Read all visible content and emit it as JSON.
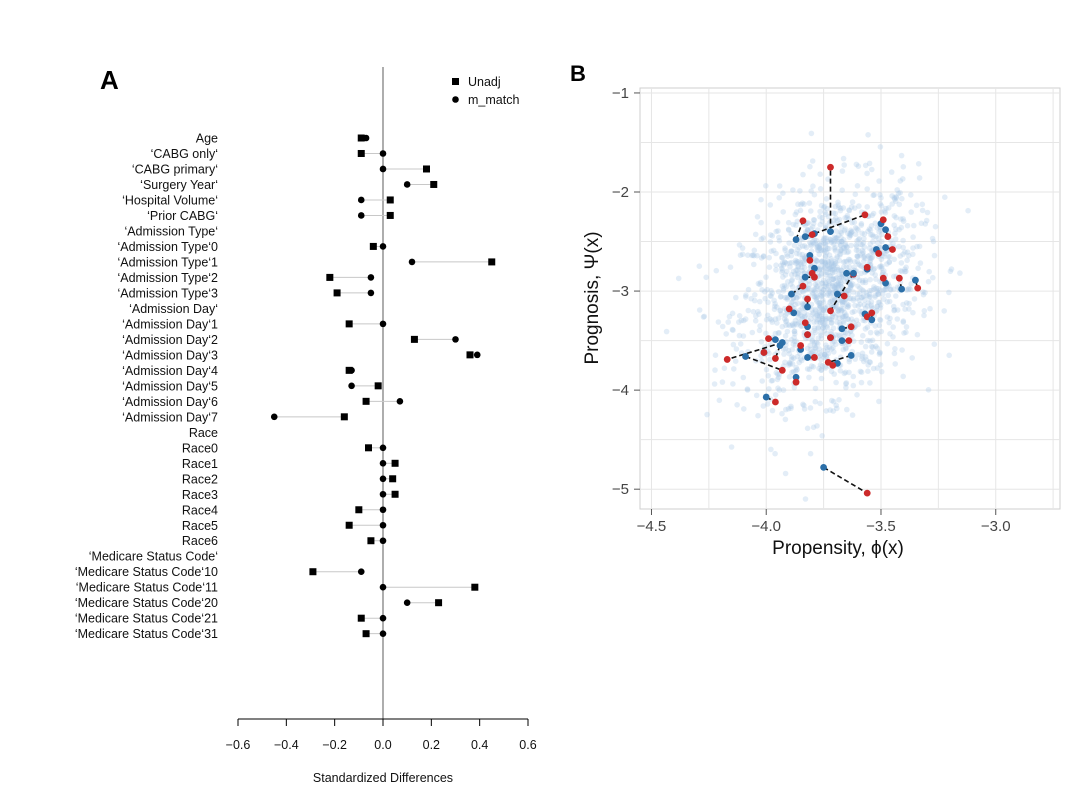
{
  "panels": {
    "a": "A",
    "b": "B"
  },
  "chart_data": [
    {
      "type": "scatter",
      "title": "",
      "xlabel": "Standardized Differences",
      "ylabel": "",
      "xlim": [
        -0.6,
        0.6
      ],
      "xticks": [
        "−0.6",
        "−0.4",
        "−0.2",
        "0.0",
        "0.2",
        "0.4",
        "0.6"
      ],
      "xtick_values": [
        -0.6,
        -0.4,
        -0.2,
        0.0,
        0.2,
        0.4,
        0.6
      ],
      "legend": {
        "position": "top-right",
        "entries": [
          {
            "name": "Unadj",
            "marker": "square"
          },
          {
            "name": "m_match",
            "marker": "circle"
          }
        ]
      },
      "rows": [
        {
          "label": "Age",
          "unadj": -0.09,
          "m_match": -0.07
        },
        {
          "label": "‘CABG only‘",
          "unadj": -0.09,
          "m_match": 0.0
        },
        {
          "label": "‘CABG primary‘",
          "unadj": 0.18,
          "m_match": 0.0
        },
        {
          "label": "‘Surgery Year‘",
          "unadj": 0.21,
          "m_match": 0.1
        },
        {
          "label": "‘Hospital Volume‘",
          "unadj": 0.03,
          "m_match": -0.09
        },
        {
          "label": "‘Prior CABG‘",
          "unadj": 0.03,
          "m_match": -0.09
        },
        {
          "label": "‘Admission Type‘",
          "header": true
        },
        {
          "label": "‘Admission Type‘0",
          "unadj": -0.04,
          "m_match": 0.0
        },
        {
          "label": "‘Admission Type‘1",
          "unadj": 0.45,
          "m_match": 0.12
        },
        {
          "label": "‘Admission Type‘2",
          "unadj": -0.22,
          "m_match": -0.05
        },
        {
          "label": "‘Admission Type‘3",
          "unadj": -0.19,
          "m_match": -0.05
        },
        {
          "label": "‘Admission Day‘",
          "header": true
        },
        {
          "label": "‘Admission Day‘1",
          "unadj": -0.14,
          "m_match": 0.0
        },
        {
          "label": "‘Admission Day‘2",
          "unadj": 0.13,
          "m_match": 0.3
        },
        {
          "label": "‘Admission Day‘3",
          "unadj": 0.36,
          "m_match": 0.39
        },
        {
          "label": "‘Admission Day‘4",
          "unadj": -0.14,
          "m_match": -0.13
        },
        {
          "label": "‘Admission Day‘5",
          "unadj": -0.02,
          "m_match": -0.13
        },
        {
          "label": "‘Admission Day‘6",
          "unadj": -0.07,
          "m_match": 0.07
        },
        {
          "label": "‘Admission Day‘7",
          "unadj": -0.16,
          "m_match": -0.45
        },
        {
          "label": "Race",
          "header": true
        },
        {
          "label": "Race0",
          "unadj": -0.06,
          "m_match": 0.0
        },
        {
          "label": "Race1",
          "unadj": 0.05,
          "m_match": 0.0
        },
        {
          "label": "Race2",
          "unadj": 0.04,
          "m_match": 0.0
        },
        {
          "label": "Race3",
          "unadj": 0.05,
          "m_match": 0.0
        },
        {
          "label": "Race4",
          "unadj": -0.1,
          "m_match": 0.0
        },
        {
          "label": "Race5",
          "unadj": -0.14,
          "m_match": 0.0
        },
        {
          "label": "Race6",
          "unadj": -0.05,
          "m_match": 0.0
        },
        {
          "label": "‘Medicare Status Code‘",
          "header": true
        },
        {
          "label": "‘Medicare Status Code‘10",
          "unadj": -0.29,
          "m_match": -0.09
        },
        {
          "label": "‘Medicare Status Code‘11",
          "unadj": 0.38,
          "m_match": 0.0
        },
        {
          "label": "‘Medicare Status Code‘20",
          "unadj": 0.23,
          "m_match": 0.1
        },
        {
          "label": "‘Medicare Status Code‘21",
          "unadj": -0.09,
          "m_match": 0.0
        },
        {
          "label": "‘Medicare Status Code‘31",
          "unadj": -0.07,
          "m_match": 0.0
        }
      ]
    },
    {
      "type": "scatter",
      "title": "",
      "xlabel": "Propensity, ϕ(x)",
      "ylabel": "Prognosis, Ψ(x)",
      "xlim": [
        -4.55,
        -2.72
      ],
      "ylim": [
        -5.2,
        -0.95
      ],
      "xticks": [
        "−4.5",
        "−4.0",
        "−3.5",
        "−3.0"
      ],
      "xtick_values": [
        -4.5,
        -4.0,
        -3.5,
        -3.0
      ],
      "yticks": [
        "−1",
        "−2",
        "−3",
        "−4",
        "−5"
      ],
      "ytick_values": [
        -1,
        -2,
        -3,
        -4,
        -5
      ],
      "grid": true,
      "colors": {
        "background": "#a9c8e6",
        "control": "#2b6fa8",
        "treated": "#cc2a2a",
        "link": "#111111"
      },
      "background_cloud": {
        "count": 1500,
        "center_x": -3.72,
        "center_y": -3.0,
        "sd_x": 0.19,
        "sd_y": 0.52,
        "correlation": 0.25
      },
      "matched_pairs": [
        {
          "control": [
            -3.72,
            -2.4
          ],
          "treated": [
            -3.72,
            -1.75
          ]
        },
        {
          "control": [
            -3.79,
            -2.42
          ],
          "treated": [
            -3.57,
            -2.23
          ]
        },
        {
          "control": [
            -3.87,
            -2.48
          ],
          "treated": [
            -3.84,
            -2.29
          ]
        },
        {
          "control": [
            -3.83,
            -2.45
          ],
          "treated": [
            -3.8,
            -2.43
          ]
        },
        {
          "control": [
            -3.5,
            -2.32
          ],
          "treated": [
            -3.49,
            -2.28
          ]
        },
        {
          "control": [
            -3.48,
            -2.38
          ],
          "treated": [
            -3.47,
            -2.45
          ]
        },
        {
          "control": [
            -3.48,
            -2.56
          ],
          "treated": [
            -3.45,
            -2.58
          ]
        },
        {
          "control": [
            -3.52,
            -2.58
          ],
          "treated": [
            -3.51,
            -2.62
          ]
        },
        {
          "control": [
            -3.81,
            -2.64
          ],
          "treated": [
            -3.81,
            -2.69
          ]
        },
        {
          "control": [
            -3.79,
            -2.77
          ],
          "treated": [
            -3.8,
            -2.82
          ]
        },
        {
          "control": [
            -3.65,
            -2.82
          ],
          "treated": [
            -3.62,
            -2.83
          ]
        },
        {
          "control": [
            -3.83,
            -2.86
          ],
          "treated": [
            -3.79,
            -2.86
          ]
        },
        {
          "control": [
            -3.56,
            -2.78
          ],
          "treated": [
            -3.56,
            -2.76
          ]
        },
        {
          "control": [
            -3.48,
            -2.92
          ],
          "treated": [
            -3.49,
            -2.87
          ]
        },
        {
          "control": [
            -3.41,
            -2.98
          ],
          "treated": [
            -3.42,
            -2.87
          ]
        },
        {
          "control": [
            -3.35,
            -2.89
          ],
          "treated": [
            -3.34,
            -2.97
          ]
        },
        {
          "control": [
            -3.62,
            -2.82
          ],
          "treated": [
            -3.72,
            -3.2
          ]
        },
        {
          "control": [
            -3.89,
            -3.03
          ],
          "treated": [
            -3.84,
            -2.95
          ]
        },
        {
          "control": [
            -3.69,
            -3.03
          ],
          "treated": [
            -3.66,
            -3.05
          ]
        },
        {
          "control": [
            -3.82,
            -3.16
          ],
          "treated": [
            -3.82,
            -3.08
          ]
        },
        {
          "control": [
            -3.57,
            -3.23
          ],
          "treated": [
            -3.56,
            -3.26
          ]
        },
        {
          "control": [
            -3.54,
            -3.29
          ],
          "treated": [
            -3.54,
            -3.22
          ]
        },
        {
          "control": [
            -3.88,
            -3.22
          ],
          "treated": [
            -3.9,
            -3.18
          ]
        },
        {
          "control": [
            -3.82,
            -3.36
          ],
          "treated": [
            -3.83,
            -3.32
          ]
        },
        {
          "control": [
            -3.67,
            -3.38
          ],
          "treated": [
            -3.63,
            -3.36
          ]
        },
        {
          "control": [
            -3.82,
            -3.44
          ],
          "treated": [
            -3.82,
            -3.44
          ]
        },
        {
          "control": [
            -3.72,
            -3.47
          ],
          "treated": [
            -3.72,
            -3.47
          ]
        },
        {
          "control": [
            -3.67,
            -3.5
          ],
          "treated": [
            -3.64,
            -3.5
          ]
        },
        {
          "control": [
            -3.85,
            -3.59
          ],
          "treated": [
            -3.85,
            -3.55
          ]
        },
        {
          "control": [
            -3.63,
            -3.65
          ],
          "treated": [
            -3.73,
            -3.72
          ]
        },
        {
          "control": [
            -3.96,
            -3.49
          ],
          "treated": [
            -3.99,
            -3.48
          ]
        },
        {
          "control": [
            -4.01,
            -3.62
          ],
          "treated": [
            -4.01,
            -3.62
          ]
        },
        {
          "control": [
            -3.94,
            -3.55
          ],
          "treated": [
            -3.96,
            -3.68
          ]
        },
        {
          "control": [
            -4.09,
            -3.66
          ],
          "treated": [
            -3.93,
            -3.8
          ]
        },
        {
          "control": [
            -3.93,
            -3.52
          ],
          "treated": [
            -4.17,
            -3.69
          ]
        },
        {
          "control": [
            -3.82,
            -3.67
          ],
          "treated": [
            -3.79,
            -3.67
          ]
        },
        {
          "control": [
            -3.69,
            -3.73
          ],
          "treated": [
            -3.71,
            -3.75
          ]
        },
        {
          "control": [
            -3.87,
            -3.87
          ],
          "treated": [
            -3.87,
            -3.92
          ]
        },
        {
          "control": [
            -4.0,
            -4.07
          ],
          "treated": [
            -3.96,
            -4.12
          ]
        },
        {
          "control": [
            -3.75,
            -4.78
          ],
          "treated": [
            -3.56,
            -5.04
          ]
        }
      ]
    }
  ]
}
